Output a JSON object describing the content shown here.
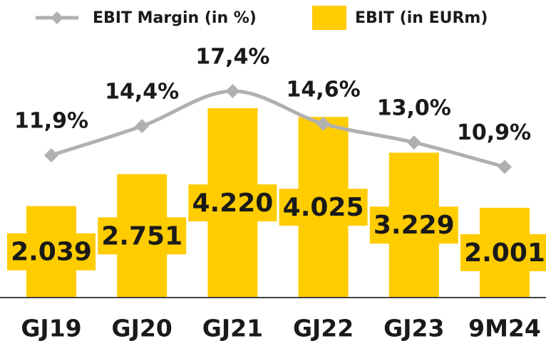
{
  "chart_data": {
    "type": "bar",
    "categories": [
      "GJ19",
      "GJ20",
      "GJ21",
      "GJ22",
      "GJ23",
      "9M24"
    ],
    "series": [
      {
        "name": "EBIT Margin (in %)",
        "type": "line",
        "color": "#b0b0b0",
        "values": [
          11.9,
          14.4,
          17.4,
          14.6,
          13.0,
          10.9
        ],
        "value_labels": [
          "11,9%",
          "14,4%",
          "17,4%",
          "14,6%",
          "13,0%",
          "10,9%"
        ]
      },
      {
        "name": "EBIT (in EURm)",
        "type": "bar",
        "color": "#ffcc00",
        "values": [
          2039,
          2751,
          4220,
          4025,
          3229,
          2001
        ],
        "value_labels": [
          "2.039",
          "2.751",
          "4.220",
          "4.025",
          "3.229",
          "2.001"
        ]
      }
    ],
    "legend": "top"
  }
}
